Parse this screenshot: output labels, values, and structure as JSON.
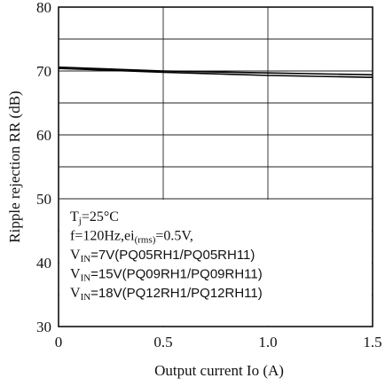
{
  "chart_data": {
    "type": "line",
    "xlabel": "Output current Io (A)",
    "ylabel": "Ripple rejection RR (dB)",
    "xlim": [
      0,
      1.5
    ],
    "ylim": [
      30,
      80
    ],
    "xticks": [
      "0",
      "0.5",
      "1.0",
      "1.5"
    ],
    "yticks": [
      "30",
      "40",
      "50",
      "60",
      "70",
      "80"
    ],
    "grid": true,
    "series": [
      {
        "x": [
          0,
          0.5,
          1.0,
          1.5
        ],
        "values": [
          70.6,
          70.0,
          69.7,
          69.4
        ]
      },
      {
        "x": [
          0,
          0.5,
          1.0,
          1.5
        ],
        "values": [
          70.4,
          69.8,
          69.3,
          69.0
        ]
      }
    ],
    "annotations": [
      {
        "main": "Tj=25°C",
        "sub": "j",
        "lead": "T",
        "rest": "=25°C"
      },
      {
        "main": "f=120Hz,ei(rms)=0.5V,",
        "lead": "f=120Hz,ei",
        "sub": "(rms)",
        "rest": "=0.5V,"
      },
      {
        "lead": "V",
        "sub": "IN",
        "rest": "=7V(PQ05RH1/PQ05RH11)"
      },
      {
        "lead": "V",
        "sub": "IN",
        "rest": "=15V(PQ09RH1/PQ09RH11)"
      },
      {
        "lead": "V",
        "sub": "IN",
        "rest": "=18V(PQ12RH1/PQ12RH11)"
      }
    ]
  }
}
